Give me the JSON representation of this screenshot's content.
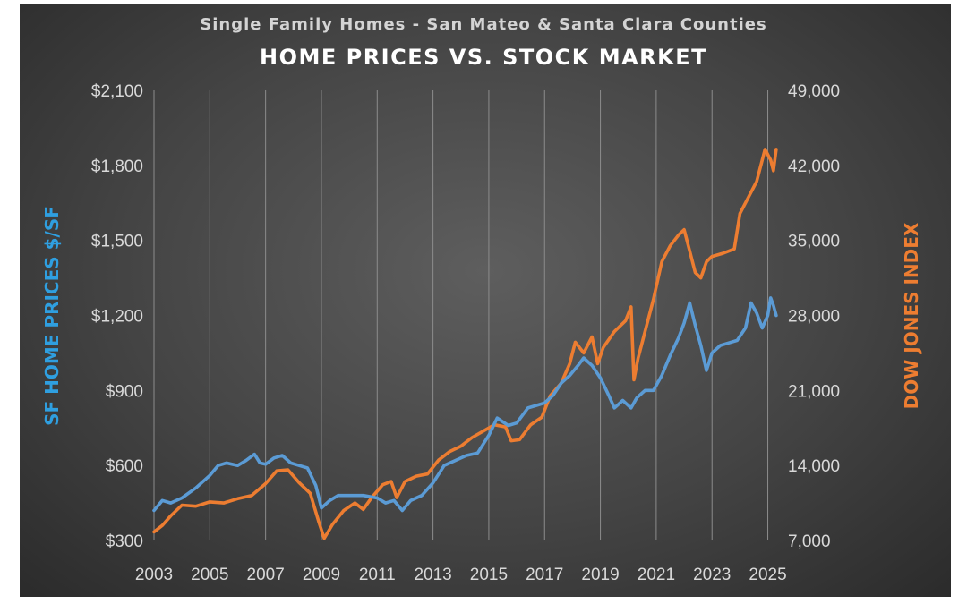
{
  "chart_data": {
    "type": "line",
    "subtitle": "Single Family Homes - San Mateo & Santa Clara  Counties",
    "title": "HOME PRICES VS. STOCK MARKET",
    "ylabel_left": "SF HOME PRICES $/SF",
    "ylabel_right": "DOW JONES INDEX",
    "xlim": [
      2003,
      2025.4
    ],
    "ylim_left": [
      300,
      2100
    ],
    "ylim_right": [
      7000,
      49000
    ],
    "x_ticks": [
      "2003",
      "2005",
      "2007",
      "2009",
      "2011",
      "2013",
      "2015",
      "2017",
      "2019",
      "2021",
      "2023",
      "2025"
    ],
    "y_ticks_left": [
      "$300",
      "$600",
      "$900",
      "$1,200",
      "$1,500",
      "$1,800",
      "$2,100"
    ],
    "y_ticks_right": [
      "7,000",
      "14,000",
      "21,000",
      "28,000",
      "35,000",
      "42,000",
      "49,000"
    ],
    "grid": "vertical",
    "colors": {
      "home_prices": "#5b9bd5",
      "dow_jones": "#ed7d31",
      "left_label": "#2f9fe0",
      "right_label": "#ed7d31"
    },
    "series": [
      {
        "key": "home_prices",
        "axis": "left",
        "points": [
          [
            2003.0,
            420
          ],
          [
            2003.3,
            460
          ],
          [
            2003.6,
            450
          ],
          [
            2004.0,
            470
          ],
          [
            2004.5,
            510
          ],
          [
            2005.0,
            560
          ],
          [
            2005.3,
            600
          ],
          [
            2005.6,
            610
          ],
          [
            2006.0,
            600
          ],
          [
            2006.3,
            620
          ],
          [
            2006.6,
            645
          ],
          [
            2006.8,
            610
          ],
          [
            2007.0,
            605
          ],
          [
            2007.3,
            630
          ],
          [
            2007.6,
            640
          ],
          [
            2007.9,
            610
          ],
          [
            2008.2,
            600
          ],
          [
            2008.5,
            590
          ],
          [
            2008.8,
            520
          ],
          [
            2009.0,
            430
          ],
          [
            2009.3,
            460
          ],
          [
            2009.6,
            480
          ],
          [
            2010.0,
            480
          ],
          [
            2010.5,
            480
          ],
          [
            2011.0,
            470
          ],
          [
            2011.3,
            450
          ],
          [
            2011.6,
            460
          ],
          [
            2011.9,
            420
          ],
          [
            2012.2,
            460
          ],
          [
            2012.6,
            480
          ],
          [
            2013.0,
            530
          ],
          [
            2013.4,
            600
          ],
          [
            2013.8,
            620
          ],
          [
            2014.2,
            640
          ],
          [
            2014.6,
            650
          ],
          [
            2015.0,
            720
          ],
          [
            2015.3,
            790
          ],
          [
            2015.7,
            760
          ],
          [
            2016.0,
            770
          ],
          [
            2016.4,
            830
          ],
          [
            2016.7,
            840
          ],
          [
            2017.0,
            850
          ],
          [
            2017.3,
            880
          ],
          [
            2017.6,
            930
          ],
          [
            2017.9,
            960
          ],
          [
            2018.2,
            1000
          ],
          [
            2018.4,
            1030
          ],
          [
            2018.7,
            1000
          ],
          [
            2019.0,
            950
          ],
          [
            2019.3,
            880
          ],
          [
            2019.5,
            830
          ],
          [
            2019.8,
            860
          ],
          [
            2020.1,
            830
          ],
          [
            2020.3,
            870
          ],
          [
            2020.6,
            900
          ],
          [
            2020.9,
            900
          ],
          [
            2021.2,
            960
          ],
          [
            2021.5,
            1040
          ],
          [
            2021.8,
            1110
          ],
          [
            2022.0,
            1170
          ],
          [
            2022.2,
            1250
          ],
          [
            2022.4,
            1160
          ],
          [
            2022.6,
            1080
          ],
          [
            2022.8,
            980
          ],
          [
            2023.0,
            1050
          ],
          [
            2023.3,
            1080
          ],
          [
            2023.6,
            1090
          ],
          [
            2023.9,
            1100
          ],
          [
            2024.2,
            1150
          ],
          [
            2024.4,
            1250
          ],
          [
            2024.6,
            1210
          ],
          [
            2024.8,
            1150
          ],
          [
            2025.0,
            1200
          ],
          [
            2025.1,
            1270
          ],
          [
            2025.2,
            1240
          ],
          [
            2025.3,
            1200
          ]
        ]
      },
      {
        "key": "dow_jones",
        "axis": "right",
        "points": [
          [
            2003.0,
            7800
          ],
          [
            2003.3,
            8400
          ],
          [
            2003.6,
            9300
          ],
          [
            2004.0,
            10300
          ],
          [
            2004.5,
            10200
          ],
          [
            2005.0,
            10600
          ],
          [
            2005.5,
            10500
          ],
          [
            2006.0,
            10900
          ],
          [
            2006.5,
            11200
          ],
          [
            2007.0,
            12300
          ],
          [
            2007.4,
            13500
          ],
          [
            2007.8,
            13600
          ],
          [
            2008.2,
            12400
          ],
          [
            2008.6,
            11400
          ],
          [
            2008.9,
            8800
          ],
          [
            2009.1,
            7200
          ],
          [
            2009.4,
            8500
          ],
          [
            2009.8,
            9800
          ],
          [
            2010.2,
            10500
          ],
          [
            2010.5,
            9900
          ],
          [
            2010.8,
            11000
          ],
          [
            2011.2,
            12200
          ],
          [
            2011.5,
            12500
          ],
          [
            2011.7,
            11000
          ],
          [
            2012.0,
            12500
          ],
          [
            2012.4,
            13000
          ],
          [
            2012.8,
            13200
          ],
          [
            2013.2,
            14500
          ],
          [
            2013.6,
            15300
          ],
          [
            2014.0,
            15800
          ],
          [
            2014.4,
            16600
          ],
          [
            2014.8,
            17200
          ],
          [
            2015.2,
            17800
          ],
          [
            2015.6,
            17600
          ],
          [
            2015.8,
            16300
          ],
          [
            2016.1,
            16400
          ],
          [
            2016.5,
            17800
          ],
          [
            2016.9,
            18500
          ],
          [
            2017.2,
            20500
          ],
          [
            2017.6,
            21700
          ],
          [
            2017.9,
            23500
          ],
          [
            2018.1,
            25500
          ],
          [
            2018.4,
            24500
          ],
          [
            2018.7,
            26000
          ],
          [
            2018.9,
            23500
          ],
          [
            2019.1,
            25000
          ],
          [
            2019.5,
            26500
          ],
          [
            2019.9,
            27500
          ],
          [
            2020.1,
            28800
          ],
          [
            2020.2,
            22000
          ],
          [
            2020.35,
            24000
          ],
          [
            2020.6,
            26500
          ],
          [
            2020.9,
            29500
          ],
          [
            2021.2,
            33000
          ],
          [
            2021.5,
            34500
          ],
          [
            2021.8,
            35500
          ],
          [
            2022.0,
            36000
          ],
          [
            2022.2,
            34000
          ],
          [
            2022.4,
            32000
          ],
          [
            2022.6,
            31500
          ],
          [
            2022.8,
            33000
          ],
          [
            2023.0,
            33500
          ],
          [
            2023.4,
            33800
          ],
          [
            2023.8,
            34200
          ],
          [
            2024.0,
            37500
          ],
          [
            2024.3,
            39000
          ],
          [
            2024.6,
            40500
          ],
          [
            2024.9,
            43500
          ],
          [
            2025.1,
            42500
          ],
          [
            2025.2,
            41500
          ],
          [
            2025.3,
            43500
          ]
        ]
      }
    ]
  }
}
